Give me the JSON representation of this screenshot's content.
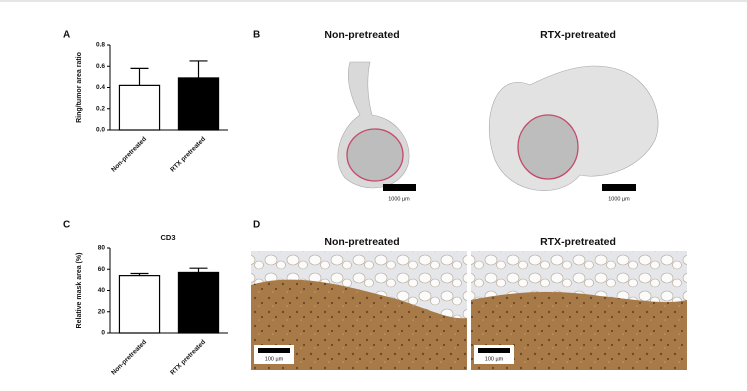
{
  "chart_data": [
    {
      "type": "bar",
      "panel": "A",
      "ylabel": "Ring/tumor area ratio",
      "categories": [
        "Non-pretreated",
        "RTX pretreated"
      ],
      "values": [
        0.42,
        0.49
      ],
      "errors": [
        0.16,
        0.16
      ],
      "colors": [
        "#ffffff",
        "#000000"
      ],
      "edgecolor": "#000000",
      "ylim": [
        0,
        0.8
      ],
      "yticks": [
        {
          "value": 0,
          "label": "0.0"
        },
        0.2,
        0.4,
        0.6,
        0.8
      ]
    },
    {
      "type": "bar",
      "panel": "C",
      "title": "CD3",
      "ylabel": "Relative mask area (%)",
      "categories": [
        "Non-pretreated",
        "RTX pretreated"
      ],
      "values": [
        54,
        57
      ],
      "errors": [
        2,
        4
      ],
      "colors": [
        "#ffffff",
        "#000000"
      ],
      "edgecolor": "#000000",
      "ylim": [
        0,
        80
      ],
      "yticks": [
        0,
        20,
        40,
        60,
        80
      ]
    }
  ],
  "panels": [
    {
      "label": "B",
      "titles": [
        "Non-pretreated",
        "RTX-pretreated"
      ],
      "scale_labels": [
        "1000 µm",
        "1000 µm"
      ]
    },
    {
      "label": "D",
      "titles": [
        "Non-pretreated",
        "RTX-pretreated"
      ],
      "scale_labels": [
        "100 µm",
        "100 µm"
      ]
    }
  ]
}
